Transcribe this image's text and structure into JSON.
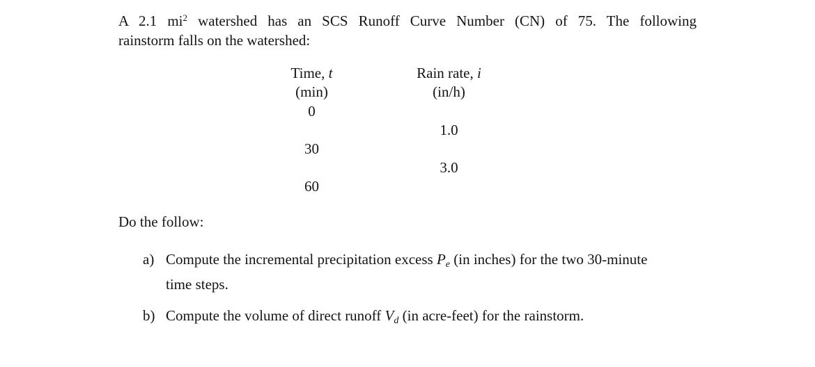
{
  "intro": {
    "line1_before": "A 2.1 mi",
    "line1_superscript": "2",
    "line1_after": "watershed has an SCS Runoff Curve Number (CN) of 75. The following",
    "line2": "rainstorm falls on the watershed:"
  },
  "table": {
    "time_column": {
      "label": "Time,",
      "symbol": "t",
      "unit": "(min)"
    },
    "rain_column": {
      "label": "Rain rate,",
      "symbol": "i",
      "unit": "(in/h)"
    },
    "time_values": [
      "0",
      "30",
      "60"
    ],
    "rain_values": [
      "1.0",
      "3.0"
    ]
  },
  "instruction": "Do the follow:",
  "items": [
    {
      "marker": "a)",
      "line1_before": "Compute the incremental precipitation excess",
      "symbol": "P",
      "subscript": "e",
      "line1_after": "(in inches) for the two 30-minute",
      "line2": "time steps."
    },
    {
      "marker": "b)",
      "line1_before": "Compute the volume of direct runoff",
      "symbol": "V",
      "subscript": "d",
      "line1_after": "(in acre-feet) for the rainstorm."
    }
  ]
}
